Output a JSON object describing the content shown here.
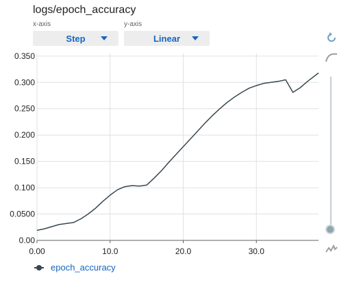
{
  "header": {
    "title": "logs/epoch_accuracy",
    "xaxis_caption": "x-axis",
    "yaxis_caption": "y-axis",
    "xaxis_select": "Step",
    "yaxis_select": "Linear"
  },
  "legend": {
    "label": "epoch_accuracy"
  },
  "tools": {
    "reset_icon": "refresh-icon",
    "smoothing_icon": "smooth-curve-icon",
    "raw_icon": "raw-line-icon"
  },
  "colors": {
    "series": "#37474f",
    "accent": "#1565c0",
    "grid": "#e0e0e0"
  },
  "chart_data": {
    "type": "line",
    "xlabel": "",
    "ylabel": "",
    "xlim": [
      0,
      38.5
    ],
    "ylim": [
      0,
      0.355
    ],
    "xticks": [
      0,
      10,
      20,
      30
    ],
    "xtick_labels": [
      "0.00",
      "10.0",
      "20.0",
      "30.0"
    ],
    "yticks": [
      0,
      0.05,
      0.1,
      0.15,
      0.2,
      0.25,
      0.3,
      0.35
    ],
    "ytick_labels": [
      "0.00",
      "0.0500",
      "0.100",
      "0.150",
      "0.200",
      "0.250",
      "0.300",
      "0.350"
    ],
    "grid": true,
    "series": [
      {
        "name": "epoch_accuracy",
        "x": [
          0,
          1,
          2,
          3,
          4,
          5,
          6,
          7,
          8,
          9,
          10,
          11,
          12,
          13,
          14,
          15,
          16,
          17,
          18,
          19,
          20,
          21,
          22,
          23,
          24,
          25,
          26,
          27,
          28,
          29,
          30,
          31,
          32,
          33,
          34,
          35,
          36,
          37,
          38.5
        ],
        "y": [
          0.019,
          0.022,
          0.026,
          0.03,
          0.032,
          0.034,
          0.041,
          0.05,
          0.061,
          0.074,
          0.086,
          0.096,
          0.102,
          0.104,
          0.103,
          0.105,
          0.118,
          0.132,
          0.148,
          0.163,
          0.178,
          0.193,
          0.208,
          0.223,
          0.237,
          0.25,
          0.262,
          0.272,
          0.281,
          0.289,
          0.294,
          0.298,
          0.3,
          0.302,
          0.305,
          0.281,
          0.29,
          0.302,
          0.318
        ]
      }
    ]
  }
}
